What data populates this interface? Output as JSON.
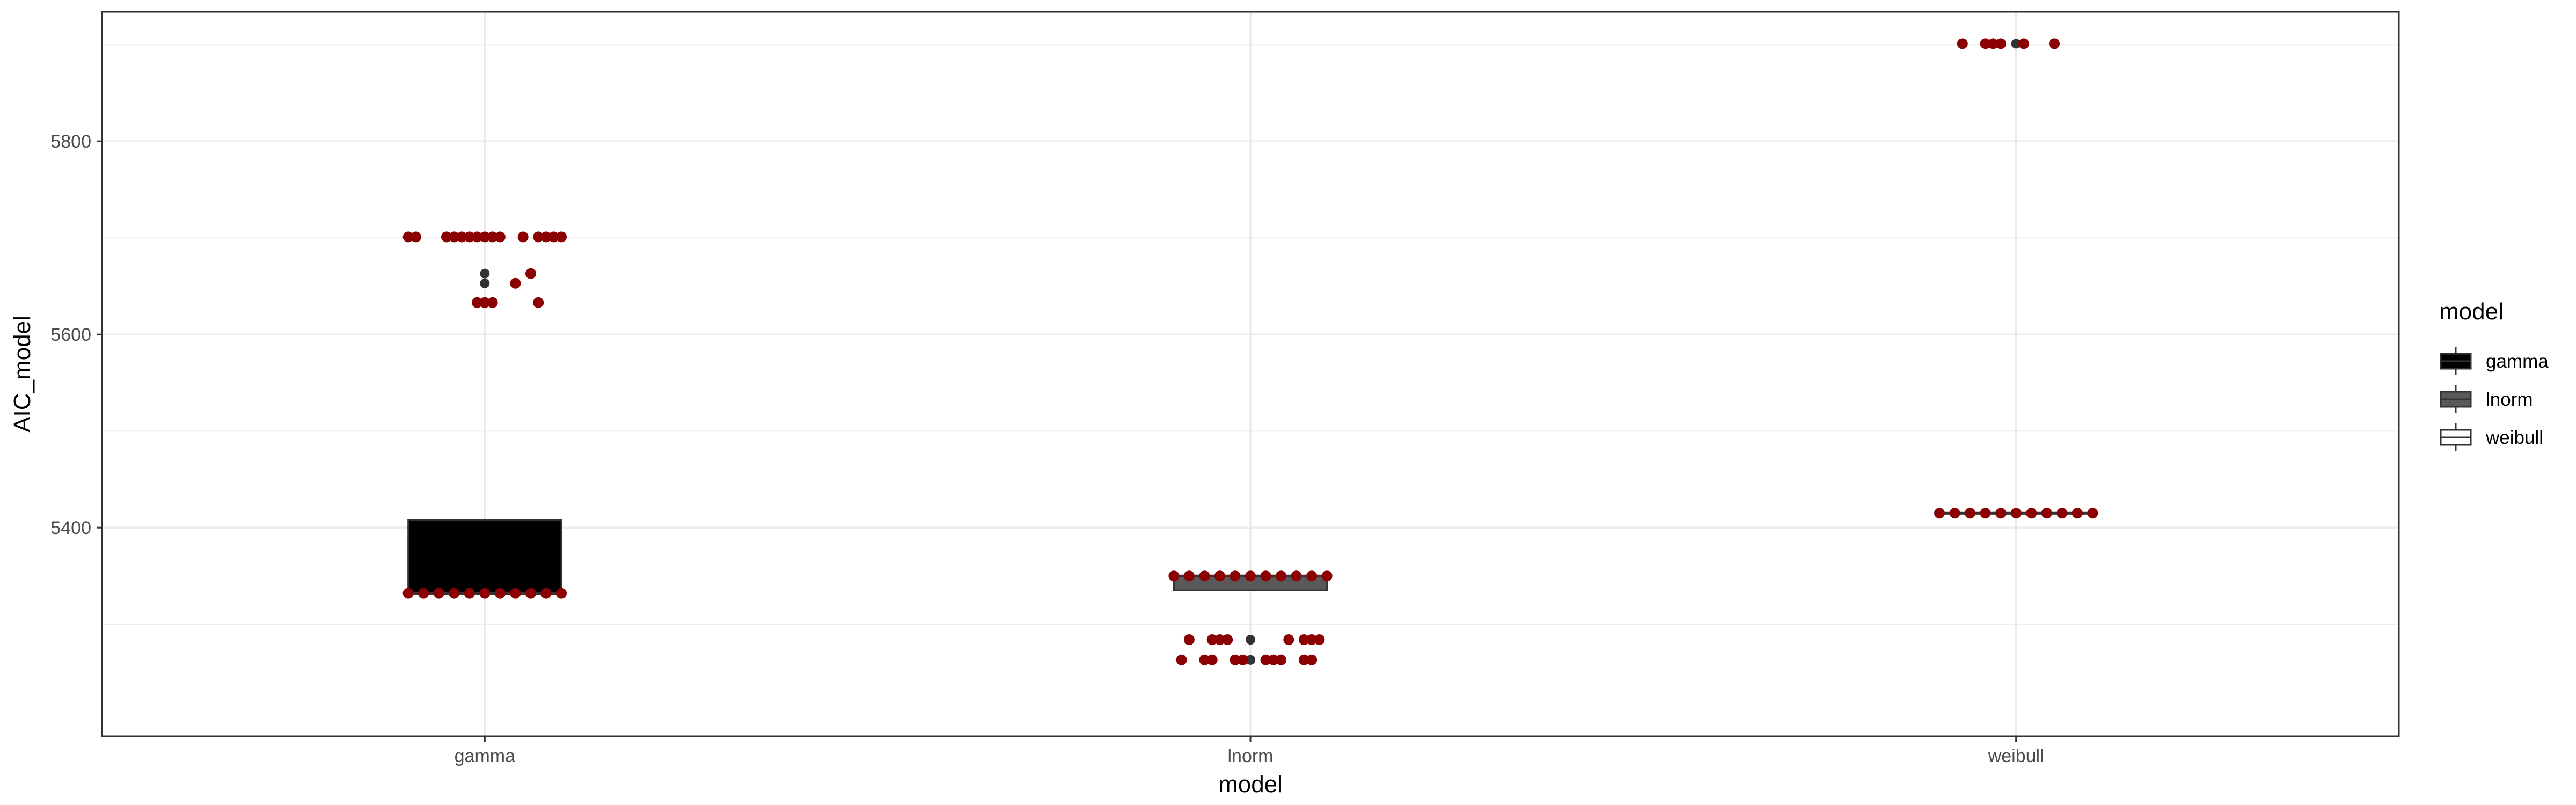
{
  "chart_data": {
    "type": "box",
    "xlabel": "model",
    "ylabel": "AIC_model",
    "categories": [
      "gamma",
      "lnorm",
      "weibull"
    ],
    "ylim": [
      5184,
      5934
    ],
    "y_ticks": [
      5400,
      5600,
      5800
    ],
    "grid": true,
    "legend": {
      "title": "model",
      "position": "right",
      "entries": [
        "gamma",
        "lnorm",
        "weibull"
      ]
    },
    "colors": {
      "gamma_fill": "#000000",
      "lnorm_fill": "#595959",
      "weibull_fill": "#ffffff",
      "box_outline": "#333333",
      "jitter_points": "#8b0000",
      "outlier_points": "#333333",
      "grid": "#ebebeb",
      "panel_border": "#333333"
    },
    "boxes": [
      {
        "category": "gamma",
        "min": 5332,
        "q1": 5332,
        "median": 5332,
        "q3": 5408,
        "max": 5408,
        "outliers": [
          5633,
          5633,
          5653,
          5663,
          5701,
          5701,
          5701,
          5701
        ]
      },
      {
        "category": "lnorm",
        "min": 5335,
        "q1": 5335,
        "median": 5350,
        "q3": 5350,
        "max": 5350,
        "outliers": [
          5284,
          5284,
          5263,
          5263
        ]
      },
      {
        "category": "weibull",
        "min": 5415,
        "q1": 5415,
        "median": 5415,
        "q3": 5415,
        "max": 5415,
        "outliers": [
          5901
        ]
      }
    ],
    "jitter_points": [
      {
        "category": "gamma",
        "x_offset": -0.1,
        "y": 5701
      },
      {
        "category": "gamma",
        "x_offset": -0.09,
        "y": 5701
      },
      {
        "category": "gamma",
        "x_offset": -0.05,
        "y": 5701
      },
      {
        "category": "gamma",
        "x_offset": -0.04,
        "y": 5701
      },
      {
        "category": "gamma",
        "x_offset": -0.03,
        "y": 5701
      },
      {
        "category": "gamma",
        "x_offset": -0.02,
        "y": 5701
      },
      {
        "category": "gamma",
        "x_offset": -0.01,
        "y": 5701
      },
      {
        "category": "gamma",
        "x_offset": 0.0,
        "y": 5701
      },
      {
        "category": "gamma",
        "x_offset": 0.01,
        "y": 5701
      },
      {
        "category": "gamma",
        "x_offset": 0.02,
        "y": 5701
      },
      {
        "category": "gamma",
        "x_offset": 0.05,
        "y": 5701
      },
      {
        "category": "gamma",
        "x_offset": 0.07,
        "y": 5701
      },
      {
        "category": "gamma",
        "x_offset": 0.08,
        "y": 5701
      },
      {
        "category": "gamma",
        "x_offset": 0.09,
        "y": 5701
      },
      {
        "category": "gamma",
        "x_offset": 0.1,
        "y": 5701
      },
      {
        "category": "gamma",
        "x_offset": 0.06,
        "y": 5663
      },
      {
        "category": "gamma",
        "x_offset": 0.04,
        "y": 5653
      },
      {
        "category": "gamma",
        "x_offset": -0.01,
        "y": 5633
      },
      {
        "category": "gamma",
        "x_offset": 0.0,
        "y": 5633
      },
      {
        "category": "gamma",
        "x_offset": 0.01,
        "y": 5633
      },
      {
        "category": "gamma",
        "x_offset": 0.07,
        "y": 5633
      },
      {
        "category": "gamma",
        "x_offset": -0.1,
        "y": 5332
      },
      {
        "category": "gamma",
        "x_offset": -0.08,
        "y": 5332
      },
      {
        "category": "gamma",
        "x_offset": -0.06,
        "y": 5332
      },
      {
        "category": "gamma",
        "x_offset": -0.04,
        "y": 5332
      },
      {
        "category": "gamma",
        "x_offset": -0.02,
        "y": 5332
      },
      {
        "category": "gamma",
        "x_offset": 0.0,
        "y": 5332
      },
      {
        "category": "gamma",
        "x_offset": 0.02,
        "y": 5332
      },
      {
        "category": "gamma",
        "x_offset": 0.04,
        "y": 5332
      },
      {
        "category": "gamma",
        "x_offset": 0.06,
        "y": 5332
      },
      {
        "category": "gamma",
        "x_offset": 0.08,
        "y": 5332
      },
      {
        "category": "gamma",
        "x_offset": 0.1,
        "y": 5332
      },
      {
        "category": "lnorm",
        "x_offset": -0.1,
        "y": 5350
      },
      {
        "category": "lnorm",
        "x_offset": -0.08,
        "y": 5350
      },
      {
        "category": "lnorm",
        "x_offset": -0.06,
        "y": 5350
      },
      {
        "category": "lnorm",
        "x_offset": -0.04,
        "y": 5350
      },
      {
        "category": "lnorm",
        "x_offset": -0.02,
        "y": 5350
      },
      {
        "category": "lnorm",
        "x_offset": 0.0,
        "y": 5350
      },
      {
        "category": "lnorm",
        "x_offset": 0.02,
        "y": 5350
      },
      {
        "category": "lnorm",
        "x_offset": 0.04,
        "y": 5350
      },
      {
        "category": "lnorm",
        "x_offset": 0.06,
        "y": 5350
      },
      {
        "category": "lnorm",
        "x_offset": 0.08,
        "y": 5350
      },
      {
        "category": "lnorm",
        "x_offset": 0.1,
        "y": 5350
      },
      {
        "category": "lnorm",
        "x_offset": -0.08,
        "y": 5284
      },
      {
        "category": "lnorm",
        "x_offset": -0.05,
        "y": 5284
      },
      {
        "category": "lnorm",
        "x_offset": -0.04,
        "y": 5284
      },
      {
        "category": "lnorm",
        "x_offset": -0.03,
        "y": 5284
      },
      {
        "category": "lnorm",
        "x_offset": 0.05,
        "y": 5284
      },
      {
        "category": "lnorm",
        "x_offset": 0.07,
        "y": 5284
      },
      {
        "category": "lnorm",
        "x_offset": 0.08,
        "y": 5284
      },
      {
        "category": "lnorm",
        "x_offset": 0.09,
        "y": 5284
      },
      {
        "category": "lnorm",
        "x_offset": -0.09,
        "y": 5263
      },
      {
        "category": "lnorm",
        "x_offset": -0.06,
        "y": 5263
      },
      {
        "category": "lnorm",
        "x_offset": -0.05,
        "y": 5263
      },
      {
        "category": "lnorm",
        "x_offset": -0.02,
        "y": 5263
      },
      {
        "category": "lnorm",
        "x_offset": -0.01,
        "y": 5263
      },
      {
        "category": "lnorm",
        "x_offset": 0.02,
        "y": 5263
      },
      {
        "category": "lnorm",
        "x_offset": 0.03,
        "y": 5263
      },
      {
        "category": "lnorm",
        "x_offset": 0.04,
        "y": 5263
      },
      {
        "category": "lnorm",
        "x_offset": 0.07,
        "y": 5263
      },
      {
        "category": "lnorm",
        "x_offset": 0.08,
        "y": 5263
      },
      {
        "category": "weibull",
        "x_offset": -0.07,
        "y": 5901
      },
      {
        "category": "weibull",
        "x_offset": -0.04,
        "y": 5901
      },
      {
        "category": "weibull",
        "x_offset": -0.03,
        "y": 5901
      },
      {
        "category": "weibull",
        "x_offset": -0.02,
        "y": 5901
      },
      {
        "category": "weibull",
        "x_offset": 0.01,
        "y": 5901
      },
      {
        "category": "weibull",
        "x_offset": 0.05,
        "y": 5901
      },
      {
        "category": "weibull",
        "x_offset": -0.1,
        "y": 5415
      },
      {
        "category": "weibull",
        "x_offset": -0.08,
        "y": 5415
      },
      {
        "category": "weibull",
        "x_offset": -0.06,
        "y": 5415
      },
      {
        "category": "weibull",
        "x_offset": -0.04,
        "y": 5415
      },
      {
        "category": "weibull",
        "x_offset": -0.02,
        "y": 5415
      },
      {
        "category": "weibull",
        "x_offset": 0.0,
        "y": 5415
      },
      {
        "category": "weibull",
        "x_offset": 0.02,
        "y": 5415
      },
      {
        "category": "weibull",
        "x_offset": 0.04,
        "y": 5415
      },
      {
        "category": "weibull",
        "x_offset": 0.06,
        "y": 5415
      },
      {
        "category": "weibull",
        "x_offset": 0.08,
        "y": 5415
      },
      {
        "category": "weibull",
        "x_offset": 0.1,
        "y": 5415
      }
    ]
  }
}
